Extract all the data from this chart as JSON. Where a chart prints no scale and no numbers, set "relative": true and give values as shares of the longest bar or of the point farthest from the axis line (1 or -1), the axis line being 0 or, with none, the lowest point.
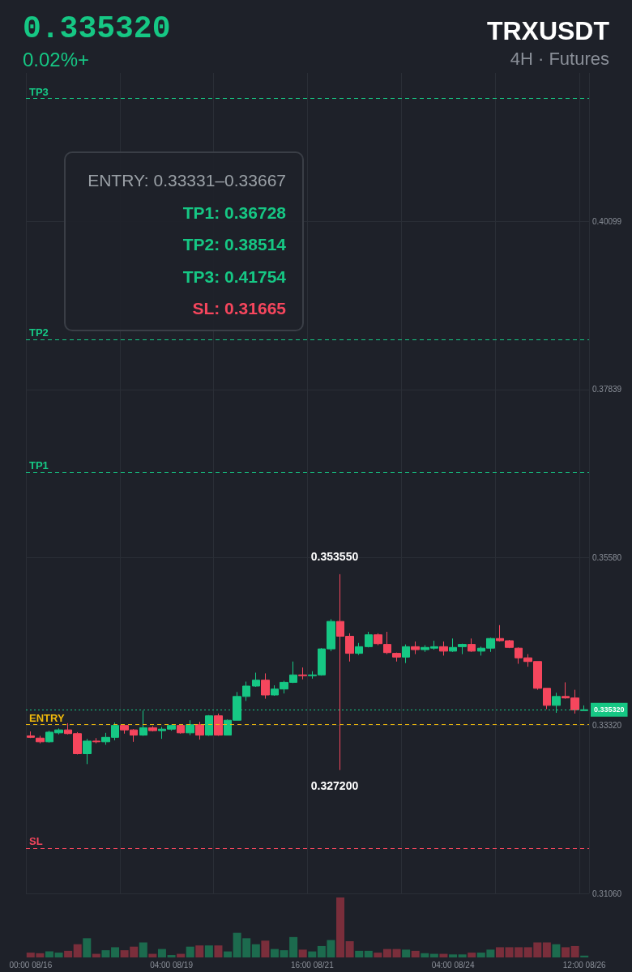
{
  "chart_data": [
    {
      "type": "candlestick",
      "title": "TRXUSDT",
      "subtitle": "4H · Futures",
      "annotations": [
        "0.335320",
        "0.02%+",
        "ENTRY: 0.33331–0.33667",
        "TP1: 0.36728",
        "TP2: 0.38514",
        "TP3: 0.41754",
        "SL: 0.31665",
        "0.353550",
        "0.327200"
      ],
      "categories": [
        null,
        null,
        null,
        null,
        null,
        null,
        null,
        null,
        null,
        null,
        null,
        null,
        null,
        null,
        null,
        null,
        null,
        null,
        null,
        null,
        null,
        null,
        null,
        null,
        null,
        null,
        null,
        null,
        null,
        null,
        null,
        null,
        null,
        null,
        null,
        null,
        null,
        null,
        null,
        null,
        null,
        null,
        null,
        null,
        null,
        null,
        null,
        null,
        null,
        null,
        null,
        null,
        null,
        null,
        null,
        null,
        null,
        null,
        null,
        null
      ],
      "ohlc": [
        [
          0.3318,
          0.3324,
          0.3315,
          0.3316
        ],
        [
          0.3315,
          0.3318,
          0.3308,
          0.331
        ],
        [
          0.331,
          0.3325,
          0.3309,
          0.3323
        ],
        [
          0.3322,
          0.3328,
          0.332,
          0.3326
        ],
        [
          0.3326,
          0.3335,
          0.332,
          0.3321
        ],
        [
          0.3321,
          0.3323,
          0.3293,
          0.3294
        ],
        [
          0.3294,
          0.3314,
          0.328,
          0.3311
        ],
        [
          0.3311,
          0.3315,
          0.3308,
          0.331
        ],
        [
          0.331,
          0.3322,
          0.3306,
          0.3316
        ],
        [
          0.3316,
          0.3336,
          0.3312,
          0.3332
        ],
        [
          0.3332,
          0.3333,
          0.3321,
          0.3326
        ],
        [
          0.3326,
          0.3327,
          0.331,
          0.3319
        ],
        [
          0.3319,
          0.3352,
          0.3318,
          0.3329
        ],
        [
          0.3329,
          0.3331,
          0.3324,
          0.3325
        ],
        [
          0.3325,
          0.333,
          0.3314,
          0.3327
        ],
        [
          0.3327,
          0.3333,
          0.3325,
          0.3332
        ],
        [
          0.3332,
          0.3333,
          0.3321,
          0.3322
        ],
        [
          0.3322,
          0.3339,
          0.3319,
          0.3333
        ],
        [
          0.3333,
          0.3337,
          0.3313,
          0.3319
        ],
        [
          0.3319,
          0.3346,
          0.3318,
          0.3345
        ],
        [
          0.3345,
          0.3348,
          0.3318,
          0.3319
        ],
        [
          0.3319,
          0.334,
          0.3319,
          0.3339
        ],
        [
          0.3339,
          0.3377,
          0.3339,
          0.3371
        ],
        [
          0.3371,
          0.3391,
          0.3365,
          0.3385
        ],
        [
          0.3385,
          0.3403,
          0.3384,
          0.3393
        ],
        [
          0.3393,
          0.3402,
          0.3368,
          0.3373
        ],
        [
          0.3373,
          0.3386,
          0.3372,
          0.3381
        ],
        [
          0.3381,
          0.3392,
          0.3375,
          0.339
        ],
        [
          0.339,
          0.3418,
          0.3389,
          0.34
        ],
        [
          0.34,
          0.341,
          0.3394,
          0.3399
        ],
        [
          0.3399,
          0.3405,
          0.3395,
          0.34
        ],
        [
          0.34,
          0.3436,
          0.3399,
          0.3435
        ],
        [
          0.3435,
          0.3475,
          0.3432,
          0.3472
        ],
        [
          0.3472,
          0.35355,
          0.3272,
          0.3452
        ],
        [
          0.3452,
          0.3456,
          0.3418,
          0.3429
        ],
        [
          0.3429,
          0.3443,
          0.3427,
          0.3438
        ],
        [
          0.3438,
          0.3458,
          0.3437,
          0.3454
        ],
        [
          0.3454,
          0.3456,
          0.344,
          0.3442
        ],
        [
          0.3441,
          0.3458,
          0.3428,
          0.343
        ],
        [
          0.3429,
          0.343,
          0.3418,
          0.3424
        ],
        [
          0.3424,
          0.3441,
          0.3416,
          0.3438
        ],
        [
          0.3438,
          0.3445,
          0.3428,
          0.3434
        ],
        [
          0.3434,
          0.344,
          0.3431,
          0.3437
        ],
        [
          0.3436,
          0.3446,
          0.3434,
          0.3438
        ],
        [
          0.3438,
          0.3445,
          0.3426,
          0.3432
        ],
        [
          0.3432,
          0.3449,
          0.3431,
          0.3437
        ],
        [
          0.3438,
          0.3442,
          0.3428,
          0.3441
        ],
        [
          0.3441,
          0.3449,
          0.3431,
          0.3432
        ],
        [
          0.3432,
          0.3438,
          0.3426,
          0.3436
        ],
        [
          0.3436,
          0.345,
          0.3431,
          0.3449
        ],
        [
          0.3449,
          0.3467,
          0.3445,
          0.3446
        ],
        [
          0.3446,
          0.3447,
          0.3436,
          0.3437
        ],
        [
          0.3436,
          0.3437,
          0.3415,
          0.3423
        ],
        [
          0.3423,
          0.3428,
          0.3411,
          0.3418
        ],
        [
          0.3418,
          0.3418,
          0.338,
          0.3382
        ],
        [
          0.3382,
          0.3382,
          0.3354,
          0.3359
        ],
        [
          0.3359,
          0.3376,
          0.3349,
          0.3371
        ],
        [
          0.3371,
          0.339,
          0.3368,
          0.3369
        ],
        [
          0.3369,
          0.338,
          0.3348,
          0.3353
        ],
        [
          0.3352,
          0.3359,
          0.3352,
          0.33532
        ]
      ],
      "colors": [
        "#f6465d",
        "#f6465d",
        "#16c784",
        "#16c784",
        "#f6465d",
        "#f6465d",
        "#16c784",
        "#f6465d",
        "#16c784",
        "#16c784",
        "#f6465d",
        "#f6465d",
        "#16c784",
        "#f6465d",
        "#16c784",
        "#16c784",
        "#f6465d",
        "#16c784",
        "#f6465d",
        "#16c784",
        "#f6465d",
        "#16c784",
        "#16c784",
        "#16c784",
        "#16c784",
        "#f6465d",
        "#16c784",
        "#16c784",
        "#16c784",
        "#f6465d",
        "#16c784",
        "#16c784",
        "#16c784",
        "#f6465d",
        "#f6465d",
        "#16c784",
        "#16c784",
        "#f6465d",
        "#f6465d",
        "#f6465d",
        "#16c784",
        "#f6465d",
        "#16c784",
        "#16c784",
        "#f6465d",
        "#16c784",
        "#16c784",
        "#f6465d",
        "#16c784",
        "#16c784",
        "#f6465d",
        "#f6465d",
        "#f6465d",
        "#f6465d",
        "#f6465d",
        "#f6465d",
        "#16c784",
        "#f6465d",
        "#f6465d",
        "#16c784"
      ],
      "ylim": [
        0.3106,
        0.421
      ],
      "yticks": [
        {
          "value": 0.3106,
          "label": "0.31060"
        },
        {
          "value": 0.3332,
          "label": "0.33320"
        },
        {
          "value": 0.3558,
          "label": "0.35580"
        },
        {
          "value": 0.37839,
          "label": "0.37839"
        },
        {
          "value": 0.40099,
          "label": "0.40099"
        }
      ],
      "ref_lines": [
        {
          "axis": "y",
          "value": 0.41754,
          "label": "TP3",
          "color": "#16c784",
          "line_style": "dashed"
        },
        {
          "axis": "y",
          "value": 0.38514,
          "label": "TP2",
          "color": "#16c784",
          "line_style": "dashed"
        },
        {
          "axis": "y",
          "value": 0.36728,
          "label": "TP1",
          "color": "#16c784",
          "line_style": "dashed"
        },
        {
          "axis": "y",
          "value": 0.33331,
          "label": "ENTRY",
          "color": "#f0b90b",
          "line_style": "dashed"
        },
        {
          "axis": "y",
          "value": 0.31665,
          "label": "SL",
          "color": "#f6465d",
          "line_style": "dashed"
        },
        {
          "axis": "y",
          "value": 0.33532,
          "label": "0.335320",
          "color": "#16c784",
          "line_style": "dotted"
        }
      ],
      "grid": true,
      "tick_labels": "y"
    },
    {
      "type": "bar",
      "relative": true,
      "categories": [
        "00:00 08/16",
        null,
        null,
        null,
        null,
        null,
        null,
        null,
        null,
        null,
        null,
        null,
        null,
        null,
        null,
        "04:00 08/19",
        null,
        null,
        null,
        null,
        null,
        null,
        null,
        null,
        null,
        null,
        null,
        null,
        null,
        null,
        "16:00 08/21",
        null,
        null,
        null,
        null,
        null,
        null,
        null,
        null,
        null,
        null,
        null,
        null,
        null,
        null,
        "04:00 08/24",
        null,
        null,
        null,
        null,
        null,
        null,
        null,
        null,
        null,
        null,
        null,
        null,
        null,
        "12:00 08/26"
      ],
      "values": [
        0.08,
        0.07,
        0.1,
        0.08,
        0.11,
        0.22,
        0.32,
        0.06,
        0.12,
        0.17,
        0.12,
        0.18,
        0.25,
        0.06,
        0.14,
        0.04,
        0.06,
        0.18,
        0.2,
        0.2,
        0.2,
        0.1,
        0.41,
        0.32,
        0.22,
        0.28,
        0.14,
        0.12,
        0.34,
        0.13,
        0.1,
        0.19,
        0.29,
        1,
        0.27,
        0.11,
        0.11,
        0.08,
        0.14,
        0.14,
        0.13,
        0.11,
        0.07,
        0.06,
        0.06,
        0.05,
        0.05,
        0.08,
        0.08,
        0.13,
        0.17,
        0.17,
        0.17,
        0.17,
        0.25,
        0.25,
        0.22,
        0.17,
        0.19,
        0.03
      ],
      "colors": [
        "#7a2e3b",
        "#7a2e3b",
        "#1c6b4e",
        "#1c6b4e",
        "#7a2e3b",
        "#7a2e3b",
        "#1c6b4e",
        "#7a2e3b",
        "#1c6b4e",
        "#1c6b4e",
        "#7a2e3b",
        "#7a2e3b",
        "#1c6b4e",
        "#7a2e3b",
        "#1c6b4e",
        "#1c6b4e",
        "#7a2e3b",
        "#1c6b4e",
        "#7a2e3b",
        "#1c6b4e",
        "#7a2e3b",
        "#1c6b4e",
        "#1c6b4e",
        "#1c6b4e",
        "#1c6b4e",
        "#7a2e3b",
        "#1c6b4e",
        "#1c6b4e",
        "#1c6b4e",
        "#7a2e3b",
        "#1c6b4e",
        "#1c6b4e",
        "#1c6b4e",
        "#7a2e3b",
        "#7a2e3b",
        "#1c6b4e",
        "#1c6b4e",
        "#7a2e3b",
        "#7a2e3b",
        "#7a2e3b",
        "#1c6b4e",
        "#7a2e3b",
        "#1c6b4e",
        "#1c6b4e",
        "#7a2e3b",
        "#1c6b4e",
        "#1c6b4e",
        "#7a2e3b",
        "#1c6b4e",
        "#1c6b4e",
        "#7a2e3b",
        "#7a2e3b",
        "#7a2e3b",
        "#7a2e3b",
        "#7a2e3b",
        "#7a2e3b",
        "#1c6b4e",
        "#7a2e3b",
        "#7a2e3b",
        "#1c6b4e"
      ]
    }
  ]
}
